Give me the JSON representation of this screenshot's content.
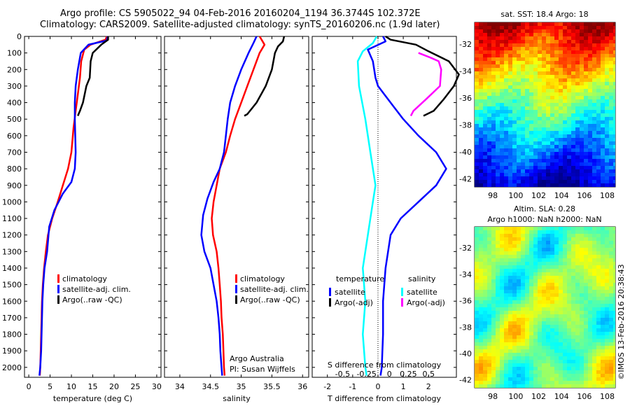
{
  "header": {
    "line1": "Argo profile: CS 5905022_94 04-Feb-2016 20160204_1194 36.3744S 102.372E",
    "line2": "Climatology: CARS2009. Satellite-adjusted climatology: synTS_20160206.nc (1.9d later)"
  },
  "colors": {
    "red": "#ff0000",
    "blue": "#0000ff",
    "black": "#000000",
    "cyan": "#00ffff",
    "magenta": "#ff00ff"
  },
  "chart_data": [
    {
      "type": "line",
      "id": "temperature",
      "xlabel": "temperature (deg C)",
      "xlim": [
        -1,
        31
      ],
      "ylim": [
        2060,
        0
      ],
      "xticks": [
        0,
        5,
        10,
        15,
        20,
        25,
        30
      ],
      "yticks": [
        0,
        100,
        200,
        300,
        400,
        500,
        600,
        700,
        800,
        900,
        1000,
        1100,
        1200,
        1300,
        1400,
        1500,
        1600,
        1700,
        1800,
        1900,
        2000
      ],
      "legend": {
        "placement": "lower-middle",
        "entries": [
          {
            "label": "climatology",
            "color": "red"
          },
          {
            "label": "satellite-adj. clim.",
            "color": "blue"
          },
          {
            "label": "Argo(..raw -QC)",
            "color": "black"
          }
        ]
      },
      "series": [
        {
          "name": "climatology",
          "color": "red",
          "points": [
            [
              18.3,
              0
            ],
            [
              18,
              20
            ],
            [
              14.5,
              50
            ],
            [
              13,
              80
            ],
            [
              12.3,
              150
            ],
            [
              12,
              250
            ],
            [
              11.5,
              350
            ],
            [
              11,
              450
            ],
            [
              10.5,
              550
            ],
            [
              10,
              700
            ],
            [
              9.2,
              800
            ],
            [
              8,
              900
            ],
            [
              6.8,
              1000
            ],
            [
              5.5,
              1100
            ],
            [
              4.5,
              1200
            ],
            [
              4,
              1300
            ],
            [
              3.6,
              1400
            ],
            [
              3.3,
              1500
            ],
            [
              3.1,
              1600
            ],
            [
              3,
              1700
            ],
            [
              2.9,
              1800
            ],
            [
              2.8,
              1900
            ],
            [
              2.7,
              2000
            ],
            [
              2.6,
              2050
            ]
          ]
        },
        {
          "name": "satellite-adj. clim.",
          "color": "blue",
          "points": [
            [
              18.5,
              0
            ],
            [
              18.3,
              25
            ],
            [
              14,
              50
            ],
            [
              12.2,
              100
            ],
            [
              11.5,
              200
            ],
            [
              11,
              300
            ],
            [
              10.8,
              400
            ],
            [
              10.8,
              500
            ],
            [
              10.9,
              600
            ],
            [
              11,
              700
            ],
            [
              10.8,
              800
            ],
            [
              10,
              880
            ],
            [
              8,
              950
            ],
            [
              6,
              1050
            ],
            [
              4.8,
              1150
            ],
            [
              4.3,
              1300
            ],
            [
              3.7,
              1400
            ],
            [
              3.4,
              1500
            ],
            [
              3.2,
              1600
            ],
            [
              3.1,
              1700
            ],
            [
              3,
              1800
            ],
            [
              2.9,
              1900
            ],
            [
              2.7,
              2000
            ],
            [
              2.5,
              2050
            ]
          ]
        },
        {
          "name": "Argo(..raw -QC)",
          "color": "black",
          "points": [
            [
              18.6,
              0
            ],
            [
              18.6,
              20
            ],
            [
              17,
              50
            ],
            [
              15,
              100
            ],
            [
              14.5,
              150
            ],
            [
              14.3,
              250
            ],
            [
              13.5,
              300
            ],
            [
              12.7,
              400
            ],
            [
              12,
              450
            ],
            [
              11.5,
              480
            ]
          ]
        }
      ]
    },
    {
      "type": "line",
      "id": "salinity",
      "xlabel": "salinity",
      "xlim": [
        33.75,
        36.1
      ],
      "ylim": [
        2060,
        0
      ],
      "xticks": [
        34,
        34.5,
        35,
        35.5,
        36
      ],
      "legend": {
        "placement": "lower-right",
        "entries": [
          {
            "label": "climatology",
            "color": "red"
          },
          {
            "label": "satellite-adj. clim.",
            "color": "blue"
          },
          {
            "label": "Argo(..raw -QC)",
            "color": "black"
          }
        ]
      },
      "annotation": [
        "Argo Australia",
        "PI: Susan Wijffels"
      ],
      "series": [
        {
          "name": "climatology",
          "color": "red",
          "points": [
            [
              35.3,
              0
            ],
            [
              35.38,
              50
            ],
            [
              35.3,
              100
            ],
            [
              35.2,
              200
            ],
            [
              35.1,
              300
            ],
            [
              35,
              400
            ],
            [
              34.9,
              500
            ],
            [
              34.82,
              600
            ],
            [
              34.75,
              700
            ],
            [
              34.65,
              800
            ],
            [
              34.6,
              900
            ],
            [
              34.55,
              1000
            ],
            [
              34.52,
              1100
            ],
            [
              34.54,
              1200
            ],
            [
              34.6,
              1300
            ],
            [
              34.63,
              1400
            ],
            [
              34.65,
              1500
            ],
            [
              34.67,
              1600
            ],
            [
              34.68,
              1700
            ],
            [
              34.7,
              1800
            ],
            [
              34.71,
              1900
            ],
            [
              34.72,
              2000
            ],
            [
              34.73,
              2050
            ]
          ]
        },
        {
          "name": "satellite-adj. clim.",
          "color": "blue",
          "points": [
            [
              35.25,
              0
            ],
            [
              35.2,
              40
            ],
            [
              35.12,
              100
            ],
            [
              35,
              200
            ],
            [
              34.9,
              300
            ],
            [
              34.82,
              400
            ],
            [
              34.78,
              500
            ],
            [
              34.75,
              600
            ],
            [
              34.72,
              700
            ],
            [
              34.65,
              800
            ],
            [
              34.55,
              880
            ],
            [
              34.45,
              980
            ],
            [
              34.38,
              1080
            ],
            [
              34.35,
              1200
            ],
            [
              34.4,
              1300
            ],
            [
              34.5,
              1400
            ],
            [
              34.55,
              1500
            ],
            [
              34.6,
              1600
            ],
            [
              34.63,
              1700
            ],
            [
              34.65,
              1800
            ],
            [
              34.66,
              1900
            ],
            [
              34.68,
              2000
            ],
            [
              34.69,
              2050
            ]
          ]
        },
        {
          "name": "Argo(..raw -QC)",
          "color": "black",
          "points": [
            [
              35.7,
              0
            ],
            [
              35.68,
              30
            ],
            [
              35.6,
              60
            ],
            [
              35.55,
              100
            ],
            [
              35.5,
              200
            ],
            [
              35.4,
              300
            ],
            [
              35.25,
              400
            ],
            [
              35.1,
              470
            ],
            [
              35.05,
              480
            ]
          ]
        }
      ]
    },
    {
      "type": "line",
      "id": "difference",
      "xlabel": "T difference from climatology",
      "xlabel_top": "S difference from climatology",
      "xlim": [
        -2.6,
        3.1
      ],
      "ylim": [
        2060,
        0
      ],
      "xticks": [
        -2,
        -1,
        0,
        1,
        2
      ],
      "top_ticks": [
        {
          "label": "-0.5",
          "t": -1.4
        },
        {
          "label": "-0.25",
          "t": -0.45
        },
        {
          "label": "0",
          "t": 0.45
        },
        {
          "label": "0.25",
          "t": 1.2
        },
        {
          "label": "0.5",
          "t": 2
        }
      ],
      "legend": {
        "placement": "lower-right",
        "groups": [
          {
            "title": "temperature",
            "entries": [
              {
                "label": "satellite",
                "color": "blue"
              },
              {
                "label": "Argo(-adj)",
                "color": "black"
              }
            ]
          },
          {
            "title": "salinity",
            "entries": [
              {
                "label": "satellite",
                "color": "cyan"
              },
              {
                "label": "Argo(-adj)",
                "color": "magenta"
              }
            ]
          }
        ]
      },
      "series": [
        {
          "name": "temperature satellite",
          "color": "blue",
          "points": [
            [
              0.2,
              0
            ],
            [
              0.3,
              30
            ],
            [
              -0.4,
              80
            ],
            [
              -0.2,
              150
            ],
            [
              -0.1,
              250
            ],
            [
              0,
              300
            ],
            [
              0.5,
              400
            ],
            [
              1,
              500
            ],
            [
              1.6,
              600
            ],
            [
              2.3,
              700
            ],
            [
              2.7,
              800
            ],
            [
              2.3,
              900
            ],
            [
              1.6,
              1000
            ],
            [
              0.9,
              1100
            ],
            [
              0.5,
              1200
            ],
            [
              0.3,
              1400
            ],
            [
              0.2,
              1600
            ],
            [
              0.2,
              1800
            ],
            [
              0.15,
              2000
            ],
            [
              0.1,
              2050
            ]
          ]
        },
        {
          "name": "temperature Argo(-adj)",
          "color": "black",
          "points": [
            [
              0.3,
              0
            ],
            [
              0.5,
              20
            ],
            [
              1.5,
              50
            ],
            [
              2,
              90
            ],
            [
              2.8,
              150
            ],
            [
              3.2,
              230
            ],
            [
              3,
              300
            ],
            [
              2.6,
              380
            ],
            [
              2.2,
              450
            ],
            [
              1.8,
              480
            ]
          ]
        },
        {
          "name": "salinity satellite",
          "color": "cyan",
          "points": [
            [
              -0.05,
              0
            ],
            [
              -0.2,
              40
            ],
            [
              -0.6,
              90
            ],
            [
              -0.8,
              150
            ],
            [
              -0.75,
              300
            ],
            [
              -0.5,
              500
            ],
            [
              -0.3,
              700
            ],
            [
              -0.1,
              900
            ],
            [
              -0.2,
              1000
            ],
            [
              -0.4,
              1200
            ],
            [
              -0.6,
              1400
            ],
            [
              -0.5,
              1600
            ],
            [
              -0.6,
              1800
            ],
            [
              -0.5,
              2000
            ],
            [
              -0.45,
              2050
            ]
          ]
        },
        {
          "name": "salinity Argo(-adj)",
          "color": "magenta",
          "points": [
            [
              1.6,
              100
            ],
            [
              2.1,
              130
            ],
            [
              2.4,
              150
            ],
            [
              2.5,
              200
            ],
            [
              2.45,
              300
            ],
            [
              1.9,
              380
            ],
            [
              1.4,
              450
            ],
            [
              1.3,
              480
            ]
          ]
        }
      ]
    },
    {
      "type": "heatmap",
      "id": "sst-map",
      "title": "sat. SST: 18.4  Argo: 18",
      "xticks": [
        98,
        100,
        102,
        104,
        106,
        108
      ],
      "yticks": [
        -32,
        -34,
        -36,
        -38,
        -40,
        -42
      ],
      "xlim": [
        96.4,
        108.7
      ],
      "ylim": [
        -42.6,
        -30.4
      ],
      "profile_lat": -36.37,
      "profile_lon": 102.37
    },
    {
      "type": "heatmap",
      "id": "sla-map",
      "title_lines": [
        "Altim. SLA: 0.28",
        "Argo h1000: NaN h2000: NaN"
      ],
      "xticks": [
        98,
        100,
        102,
        104,
        106,
        108
      ],
      "yticks": [
        -32,
        -34,
        -36,
        -38,
        -40,
        -42
      ],
      "xlim": [
        96.4,
        108.7
      ],
      "ylim": [
        -42.6,
        -30.4
      ],
      "side_text": "©IMOS 13-Feb-2016 20:38:43"
    }
  ]
}
